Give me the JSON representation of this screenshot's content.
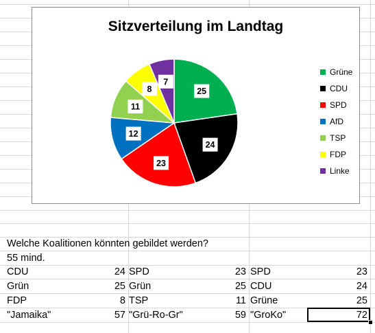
{
  "chart_data": {
    "type": "pie",
    "title": "Sitzverteilung im Landtag",
    "categories": [
      "Grüne",
      "CDU",
      "SPD",
      "AfD",
      "TSP",
      "FDP",
      "Linke"
    ],
    "values": [
      25,
      24,
      23,
      12,
      11,
      8,
      7
    ],
    "colors": [
      "#00b050",
      "#000000",
      "#ff0000",
      "#0070c0",
      "#92d050",
      "#ffff00",
      "#7030a0"
    ],
    "legend_position": "right"
  },
  "sheet": {
    "question": "Welche Koalitionen könnten gebildet werden?",
    "minimum": "55 mind.",
    "coalitions": [
      {
        "rows": [
          [
            "CDU",
            "24"
          ],
          [
            "Grün",
            "25"
          ],
          [
            "FDP",
            "8"
          ]
        ],
        "name": "\"Jamaika\"",
        "total": "57"
      },
      {
        "rows": [
          [
            "SPD",
            "23"
          ],
          [
            "Grün",
            "25"
          ],
          [
            "TSP",
            "11"
          ]
        ],
        "name": "\"Grü-Ro-Gr\"",
        "total": "59"
      },
      {
        "rows": [
          [
            "SPD",
            "23"
          ],
          [
            "CDU",
            "24"
          ],
          [
            "Grüne",
            "25"
          ]
        ],
        "name": "\"GroKo\"",
        "total": "72"
      }
    ]
  }
}
